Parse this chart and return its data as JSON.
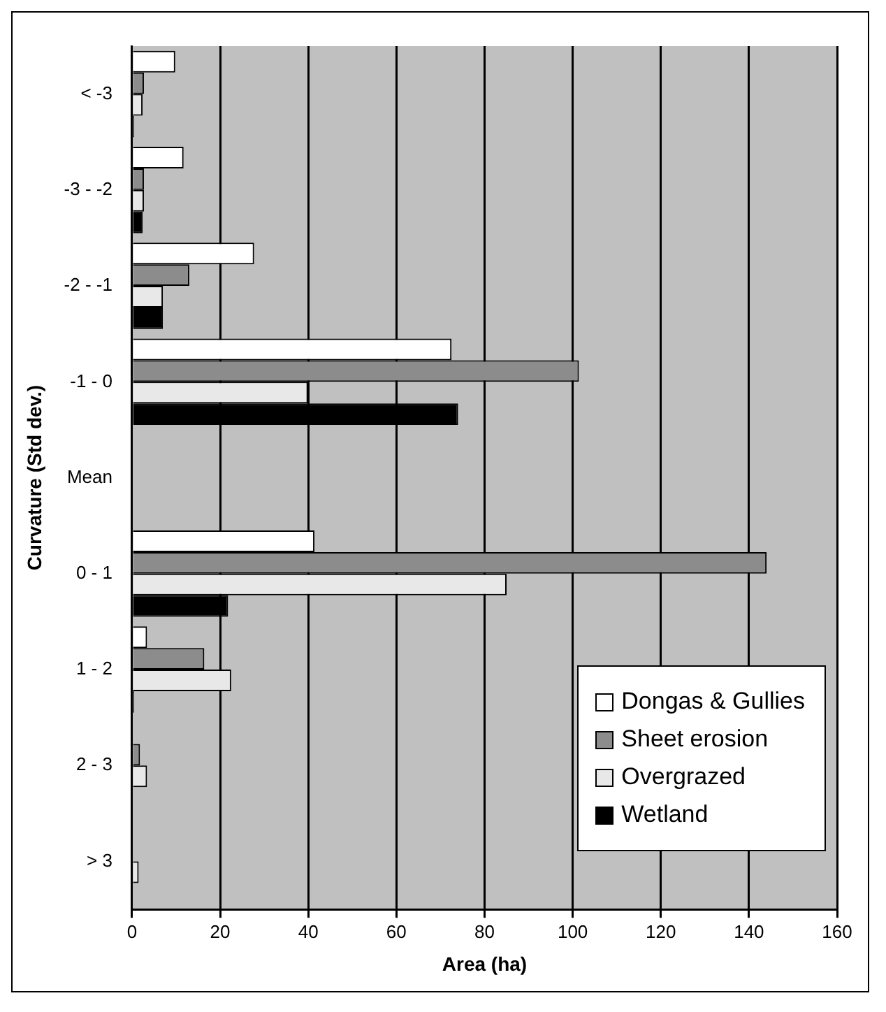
{
  "chart_data": {
    "type": "bar",
    "orientation": "horizontal",
    "xlabel": "Area (ha)",
    "ylabel": "Curvature (Std dev.)",
    "categories": [
      "< -3",
      "-3 - -2",
      "-2 - -1",
      "-1 - 0",
      "Mean",
      "0 - 1",
      "1 - 2",
      "2 - 3",
      "> 3"
    ],
    "series": [
      {
        "name": "Dongas & Gullies",
        "color": "#ffffff",
        "values": [
          9.8,
          11.7,
          27.7,
          72.5,
          null,
          41.4,
          3.4,
          0,
          0
        ]
      },
      {
        "name": "Sheet erosion",
        "color": "#8c8c8c",
        "values": [
          2.7,
          2.7,
          13,
          101.4,
          null,
          144,
          16.4,
          1.8,
          0
        ]
      },
      {
        "name": "Overgrazed",
        "color": "#e8e8e8",
        "values": [
          2.4,
          2.7,
          7,
          39.9,
          null,
          85,
          22.5,
          3.4,
          1.5
        ]
      },
      {
        "name": "Wetland",
        "color": "#000000",
        "values": [
          0.5,
          2.4,
          7,
          74,
          null,
          21.8,
          0.5,
          0,
          0
        ]
      }
    ],
    "xlim": [
      0,
      160
    ],
    "xticks": [
      0,
      20,
      40,
      60,
      80,
      100,
      120,
      140,
      160
    ],
    "grid": "x",
    "legend": "bottom right"
  }
}
